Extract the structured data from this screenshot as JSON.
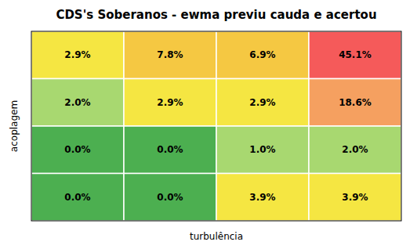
{
  "chart_data": {
    "type": "heatmap",
    "title": "CDS's Soberanos - ewma previu cauda e acertou",
    "xlabel": "turbulência",
    "ylabel": "acoplagem",
    "values": [
      [
        2.9,
        7.8,
        6.9,
        45.1
      ],
      [
        2.0,
        2.9,
        2.9,
        18.6
      ],
      [
        0.0,
        0.0,
        1.0,
        2.0
      ],
      [
        0.0,
        0.0,
        3.9,
        3.9
      ]
    ],
    "value_labels": [
      [
        "2.9%",
        "7.8%",
        "6.9%",
        "45.1%"
      ],
      [
        "2.0%",
        "2.9%",
        "2.9%",
        "18.6%"
      ],
      [
        "0.0%",
        "0.0%",
        "1.0%",
        "2.0%"
      ],
      [
        "0.0%",
        "0.0%",
        "3.9%",
        "3.9%"
      ]
    ],
    "colors": [
      [
        "#f5e642",
        "#f5c842",
        "#f5c842",
        "#f55a5a"
      ],
      [
        "#a8d870",
        "#f5e642",
        "#f5e642",
        "#f5a060"
      ],
      [
        "#4caf50",
        "#4caf50",
        "#a8d870",
        "#a8d870"
      ],
      [
        "#4caf50",
        "#4caf50",
        "#f5e642",
        "#f5e642"
      ]
    ],
    "data_labels": true,
    "tick_labels": false
  }
}
